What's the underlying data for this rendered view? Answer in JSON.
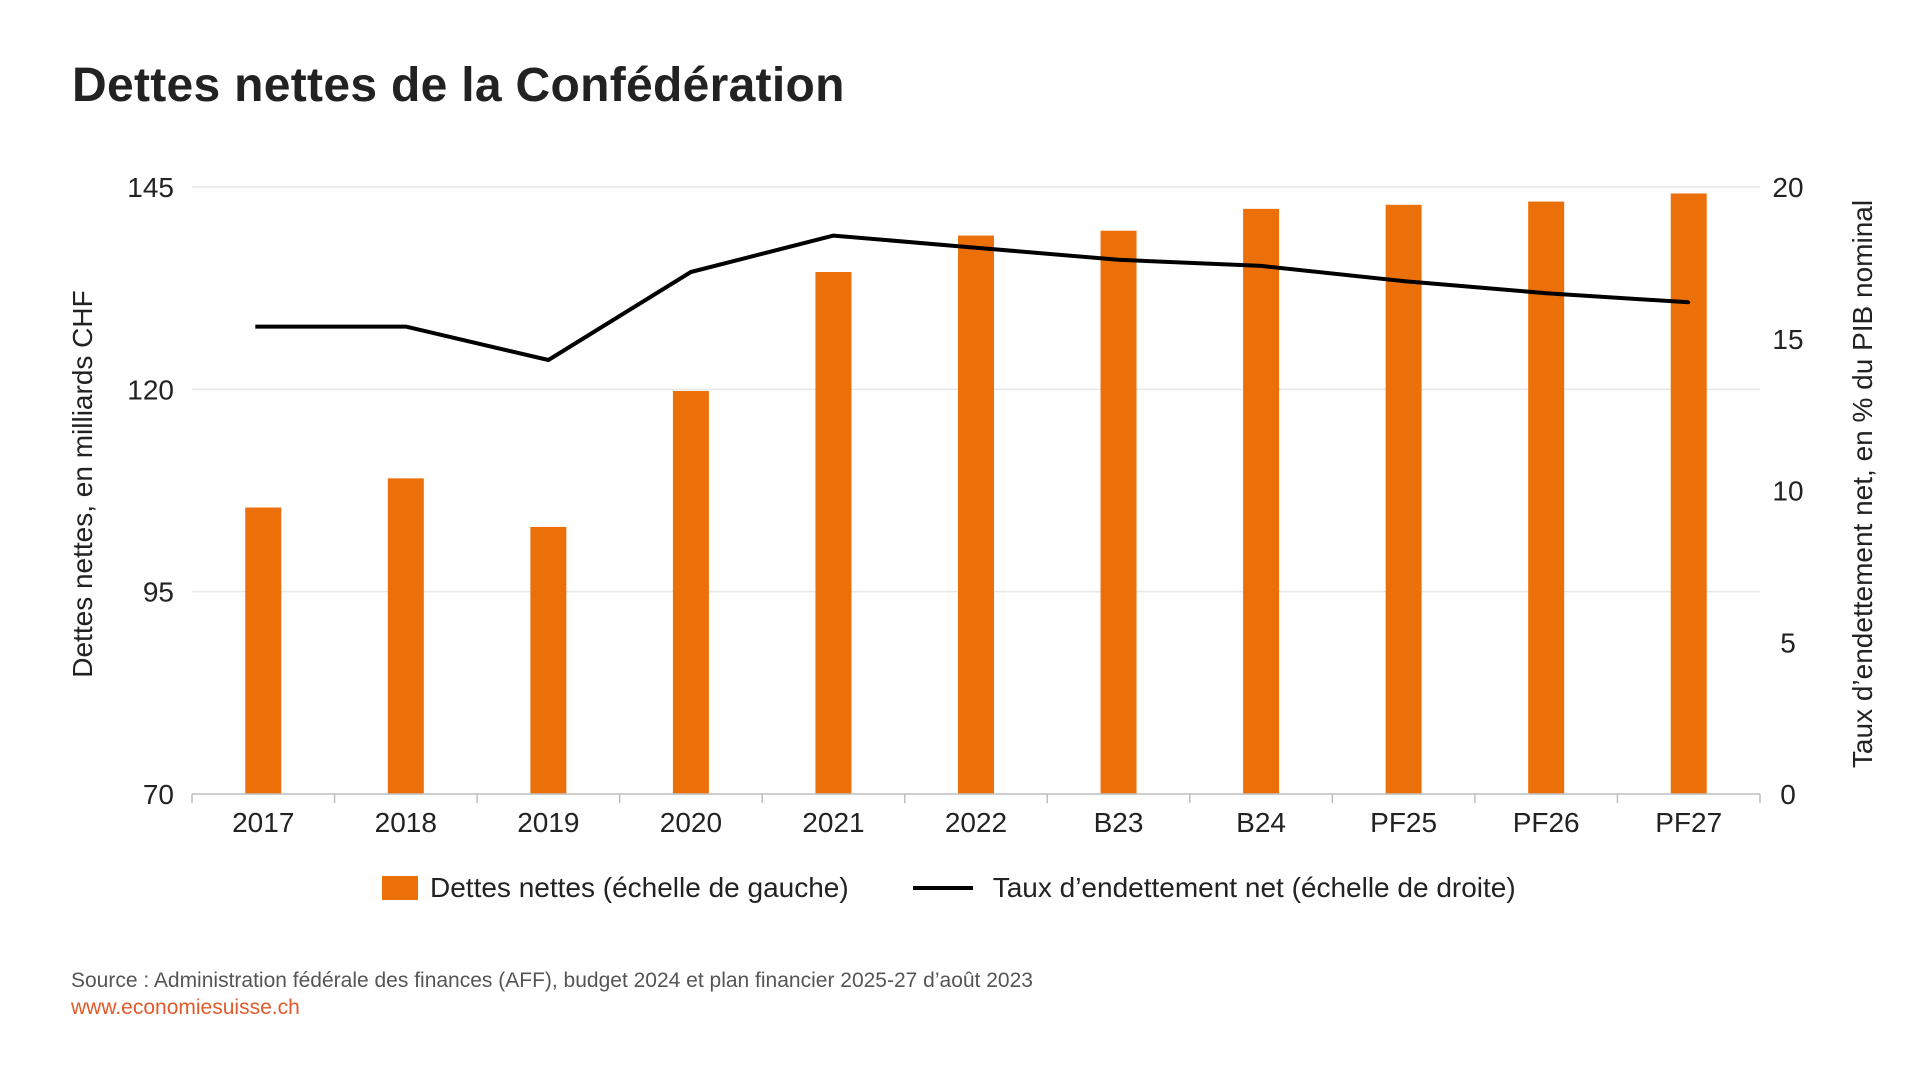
{
  "colors": {
    "bar": "#ec700a",
    "line": "#000000",
    "grid": "#e6e6e6",
    "axis": "#bdbdbd",
    "text": "#222222"
  },
  "chart_data": {
    "type": "bar",
    "title": "Dettes nettes de la Confédération",
    "categories": [
      "2017",
      "2018",
      "2019",
      "2020",
      "2021",
      "2022",
      "B23",
      "B24",
      "PF25",
      "PF26",
      "PF27"
    ],
    "series": [
      {
        "name": "Dettes nettes (échelle de gauche)",
        "type": "bar",
        "axis": "left",
        "values": [
          105.4,
          109.0,
          103.0,
          119.8,
          134.5,
          139.0,
          139.6,
          142.3,
          142.8,
          143.2,
          144.2
        ]
      },
      {
        "name": "Taux d’endettement net (échelle de droite)",
        "type": "line",
        "axis": "right",
        "values": [
          15.4,
          15.4,
          14.3,
          17.2,
          18.4,
          18.0,
          17.6,
          17.4,
          16.9,
          16.5,
          16.2
        ]
      }
    ],
    "y_left": {
      "label": "Dettes nettes, en milliards CHF",
      "ylim": [
        70,
        145
      ],
      "ticks": [
        70,
        95,
        120,
        145
      ]
    },
    "y_right": {
      "label": "Taux d’endettement net, en % du PIB nominal",
      "ylim": [
        0,
        20
      ],
      "ticks": [
        0,
        5,
        10,
        15,
        20
      ]
    },
    "grid": true,
    "legend_position": "bottom"
  },
  "footer": {
    "source": "Source : Administration fédérale des finances (AFF), budget 2024 et plan financier 2025-27 d’août 2023",
    "website": "www.economiesuisse.ch"
  }
}
